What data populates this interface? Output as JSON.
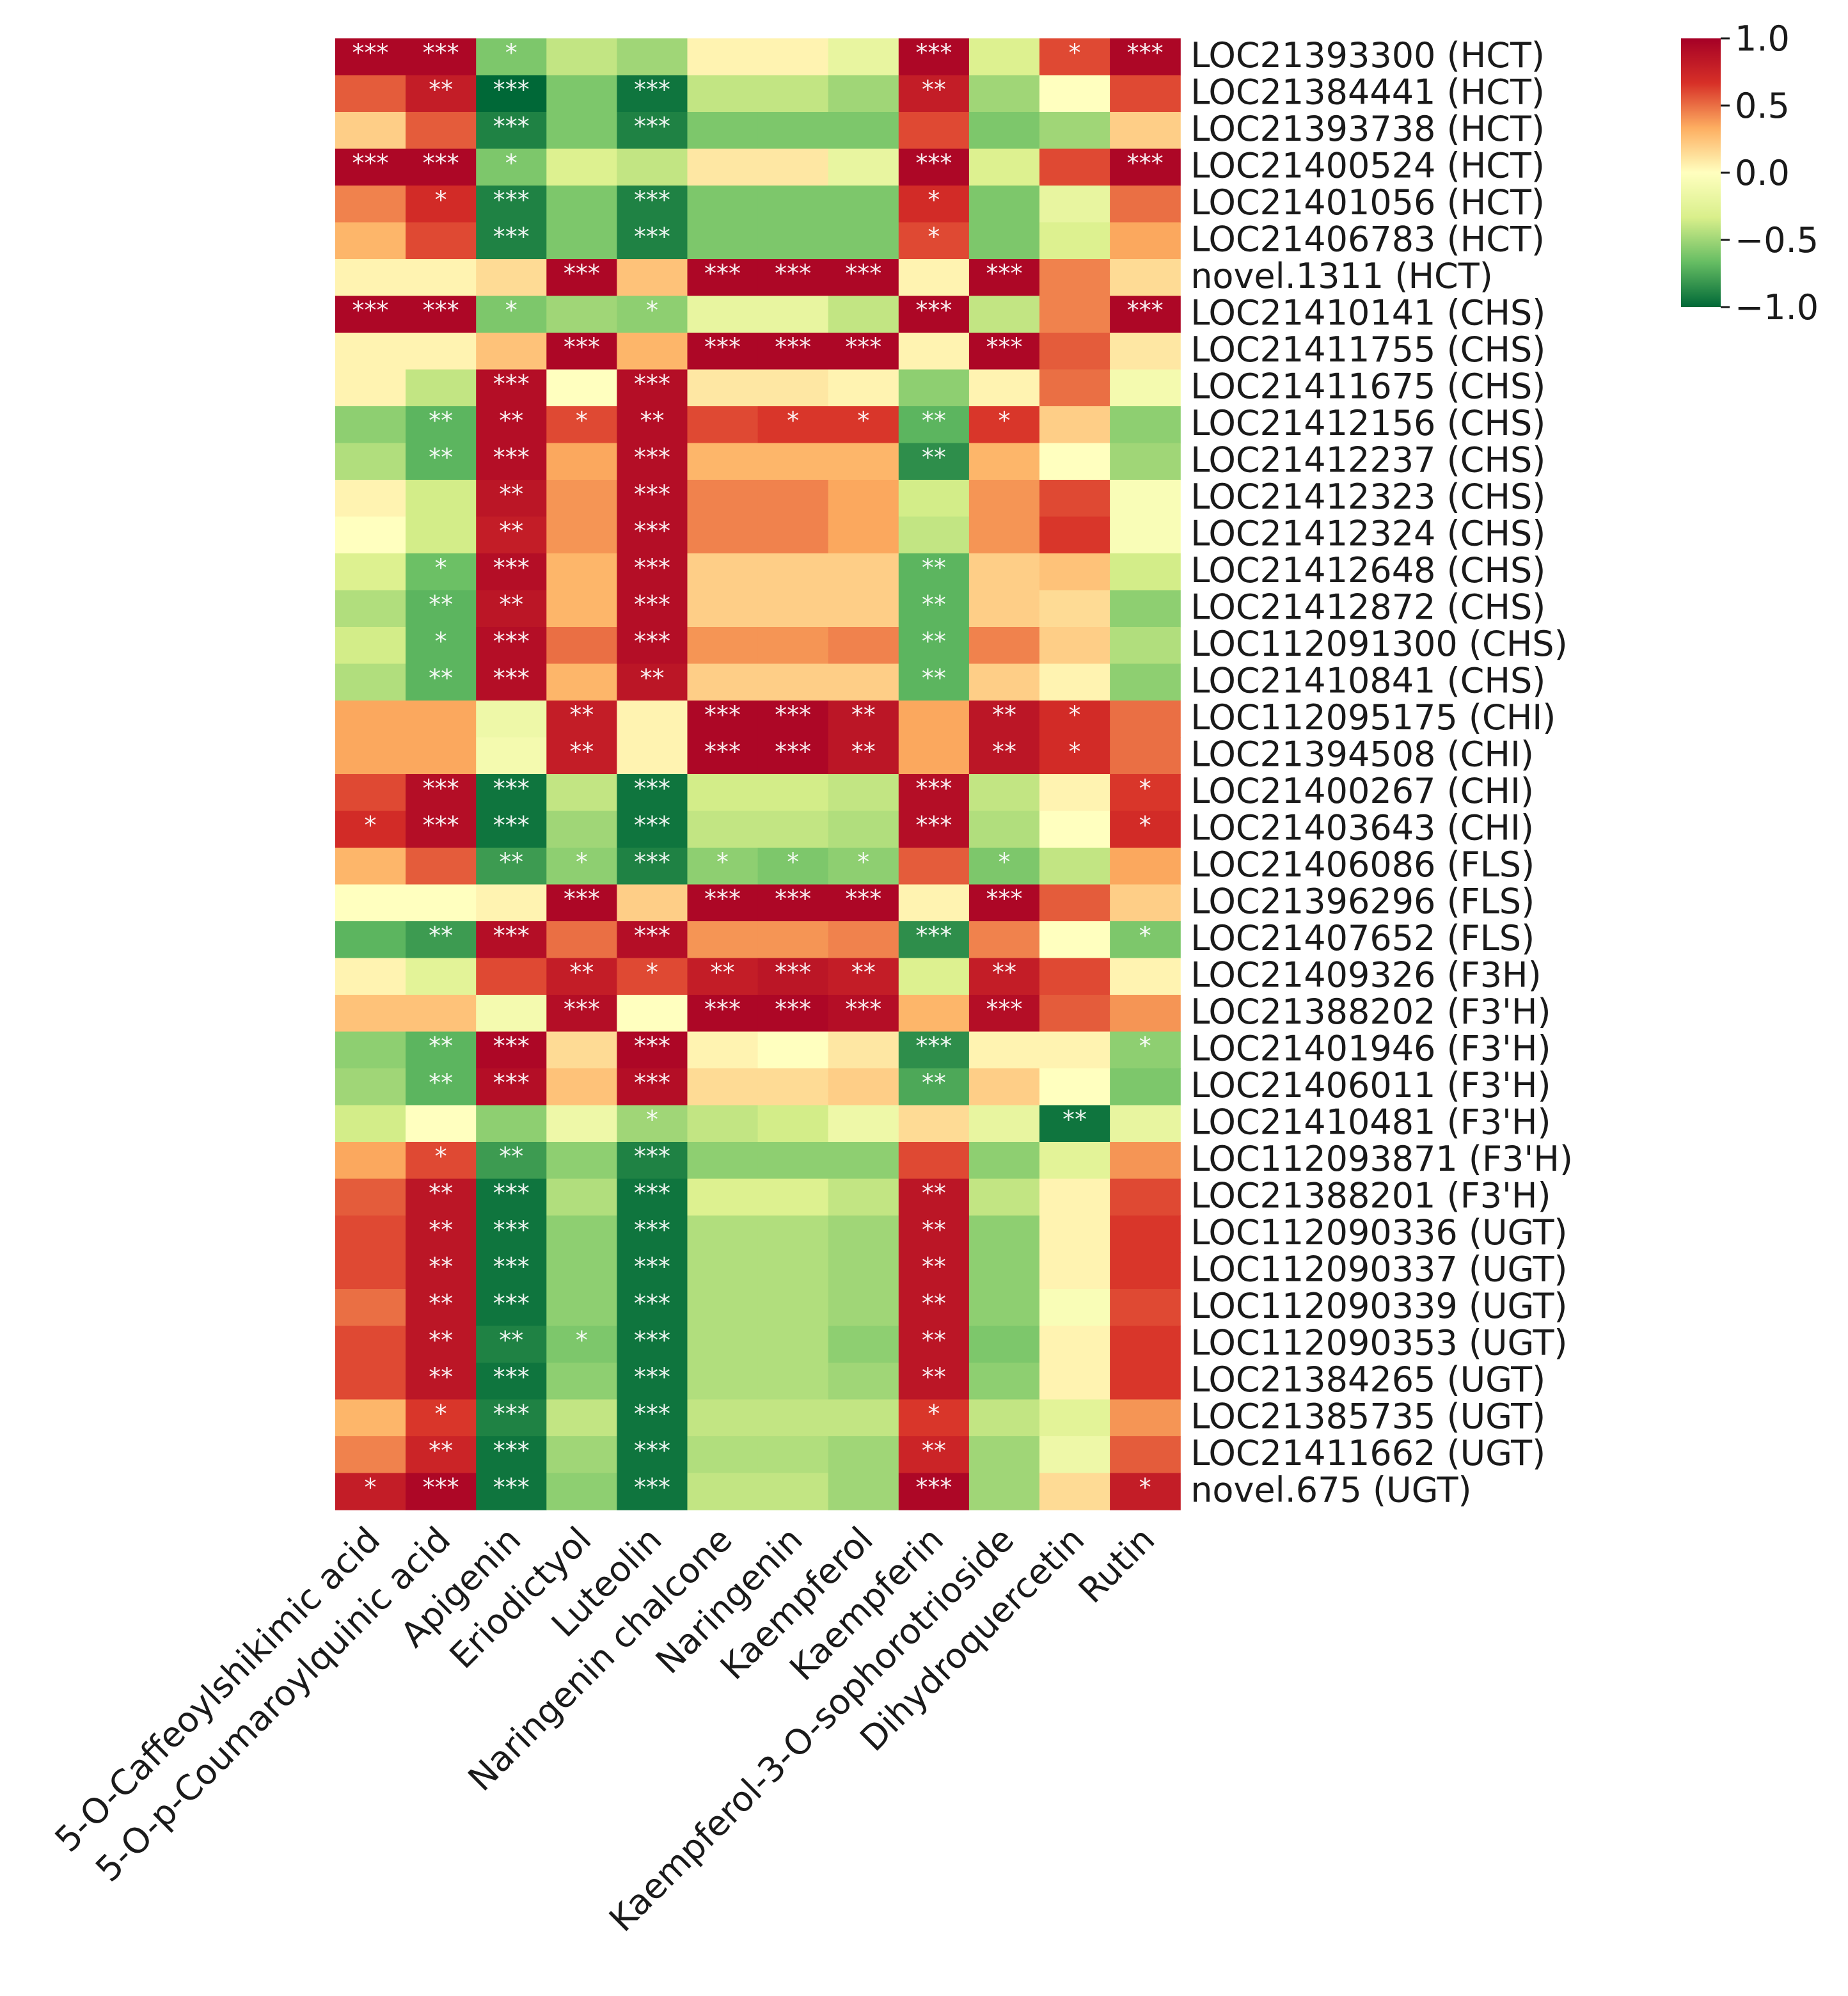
{
  "chart_data": {
    "type": "heatmap",
    "title": "",
    "columns": [
      "5-O-Caffeoylshikimic acid",
      "5-O-p-Coumaroylquinic acid",
      "Apigenin",
      "Eriodictyol",
      "Luteolin",
      "Naringenin chalcone",
      "Naringenin",
      "Kaempferol",
      "Kaempferin",
      "Kaempferol-3-O-sophorotrioside",
      "Dihydroquercetin",
      "Rutin"
    ],
    "rows": [
      "LOC21393300 (HCT)",
      "LOC21384441 (HCT)",
      "LOC21393738 (HCT)",
      "LOC21400524 (HCT)",
      "LOC21401056 (HCT)",
      "LOC21406783 (HCT)",
      "novel.1311 (HCT)",
      "LOC21410141 (CHS)",
      "LOC21411755 (CHS)",
      "LOC21411675 (CHS)",
      "LOC21412156 (CHS)",
      "LOC21412237 (CHS)",
      "LOC21412323 (CHS)",
      "LOC21412324 (CHS)",
      "LOC21412648 (CHS)",
      "LOC21412872 (CHS)",
      "LOC112091300 (CHS)",
      "LOC21410841 (CHS)",
      "LOC112095175 (CHI)",
      "LOC21394508 (CHI)",
      "LOC21400267 (CHI)",
      "LOC21403643 (CHI)",
      "LOC21406086 (FLS)",
      "LOC21396296 (FLS)",
      "LOC21407652 (FLS)",
      "LOC21409326 (F3H)",
      "LOC21388202 (F3'H)",
      "LOC21401946 (F3'H)",
      "LOC21406011 (F3'H)",
      "LOC21410481 (F3'H)",
      "LOC112093871 (F3'H)",
      "LOC21388201 (F3'H)",
      "LOC112090336 (UGT)",
      "LOC112090337 (UGT)",
      "LOC112090339 (UGT)",
      "LOC112090353 (UGT)",
      "LOC21384265 (UGT)",
      "LOC21385735 (UGT)",
      "LOC21411662 (UGT)",
      "novel.675 (UGT)"
    ],
    "values": [
      [
        0.95,
        0.95,
        -0.6,
        -0.4,
        -0.5,
        0.05,
        0.05,
        -0.2,
        0.95,
        -0.3,
        0.6,
        0.95
      ],
      [
        0.55,
        0.8,
        -1.0,
        -0.6,
        -0.95,
        -0.4,
        -0.4,
        -0.5,
        0.8,
        -0.5,
        0.0,
        0.6
      ],
      [
        0.2,
        0.55,
        -0.9,
        -0.6,
        -0.9,
        -0.6,
        -0.6,
        -0.6,
        0.6,
        -0.6,
        -0.5,
        0.2
      ],
      [
        0.95,
        0.95,
        -0.6,
        -0.3,
        -0.4,
        0.1,
        0.1,
        -0.2,
        0.95,
        -0.3,
        0.6,
        0.95
      ],
      [
        0.45,
        0.7,
        -0.9,
        -0.6,
        -0.9,
        -0.6,
        -0.6,
        -0.6,
        0.7,
        -0.6,
        -0.2,
        0.5
      ],
      [
        0.3,
        0.6,
        -0.9,
        -0.6,
        -0.9,
        -0.6,
        -0.6,
        -0.6,
        0.6,
        -0.6,
        -0.3,
        0.35
      ],
      [
        0.05,
        0.05,
        0.15,
        0.95,
        0.25,
        0.95,
        0.95,
        0.95,
        0.05,
        0.95,
        0.45,
        0.15
      ],
      [
        0.95,
        0.95,
        -0.6,
        -0.5,
        -0.55,
        -0.2,
        -0.2,
        -0.4,
        0.95,
        -0.4,
        0.45,
        0.95
      ],
      [
        0.05,
        0.05,
        0.25,
        0.95,
        0.3,
        0.95,
        0.95,
        0.95,
        0.05,
        0.95,
        0.55,
        0.1
      ],
      [
        0.05,
        -0.4,
        0.9,
        0.0,
        0.9,
        0.1,
        0.1,
        0.05,
        -0.55,
        0.05,
        0.5,
        -0.1
      ],
      [
        -0.55,
        -0.7,
        0.9,
        0.6,
        0.9,
        0.6,
        0.65,
        0.65,
        -0.7,
        0.65,
        0.2,
        -0.55
      ],
      [
        -0.45,
        -0.7,
        0.9,
        0.35,
        0.9,
        0.3,
        0.3,
        0.3,
        -0.85,
        0.3,
        0.0,
        -0.5
      ],
      [
        0.05,
        -0.35,
        0.85,
        0.4,
        0.9,
        0.45,
        0.45,
        0.35,
        -0.35,
        0.4,
        0.6,
        -0.05
      ],
      [
        0.0,
        -0.35,
        0.8,
        0.4,
        0.9,
        0.45,
        0.45,
        0.35,
        -0.4,
        0.4,
        0.65,
        -0.05
      ],
      [
        -0.3,
        -0.65,
        0.9,
        0.3,
        0.9,
        0.2,
        0.2,
        0.2,
        -0.7,
        0.2,
        0.25,
        -0.35
      ],
      [
        -0.45,
        -0.7,
        0.85,
        0.3,
        0.9,
        0.2,
        0.2,
        0.2,
        -0.7,
        0.2,
        0.15,
        -0.55
      ],
      [
        -0.35,
        -0.7,
        0.9,
        0.5,
        0.9,
        0.4,
        0.4,
        0.45,
        -0.7,
        0.45,
        0.2,
        -0.45
      ],
      [
        -0.45,
        -0.7,
        0.9,
        0.3,
        0.85,
        0.2,
        0.2,
        0.2,
        -0.7,
        0.2,
        0.05,
        -0.55
      ],
      [
        0.35,
        0.35,
        -0.15,
        0.8,
        0.05,
        0.95,
        0.95,
        0.85,
        0.35,
        0.85,
        0.7,
        0.5
      ],
      [
        0.35,
        0.35,
        -0.1,
        0.8,
        0.05,
        0.95,
        0.95,
        0.85,
        0.35,
        0.85,
        0.7,
        0.5
      ],
      [
        0.6,
        0.9,
        -0.95,
        -0.4,
        -0.95,
        -0.35,
        -0.35,
        -0.4,
        0.9,
        -0.4,
        0.05,
        0.65
      ],
      [
        0.7,
        0.9,
        -0.95,
        -0.5,
        -0.95,
        -0.4,
        -0.4,
        -0.45,
        0.9,
        -0.45,
        0.0,
        0.7
      ],
      [
        0.3,
        0.55,
        -0.8,
        -0.55,
        -0.9,
        -0.55,
        -0.6,
        -0.55,
        0.55,
        -0.6,
        -0.4,
        0.35
      ],
      [
        0.0,
        0.0,
        0.05,
        0.95,
        0.2,
        0.95,
        0.95,
        0.95,
        0.05,
        0.95,
        0.55,
        0.2
      ],
      [
        -0.7,
        -0.8,
        0.9,
        0.5,
        0.9,
        0.4,
        0.4,
        0.45,
        -0.85,
        0.45,
        0.0,
        -0.6
      ],
      [
        0.05,
        -0.25,
        0.6,
        0.8,
        0.6,
        0.8,
        0.85,
        0.8,
        -0.3,
        0.8,
        0.6,
        0.05
      ],
      [
        0.25,
        0.25,
        -0.1,
        0.9,
        0.0,
        0.95,
        0.95,
        0.9,
        0.3,
        0.9,
        0.55,
        0.4
      ],
      [
        -0.55,
        -0.7,
        0.95,
        0.15,
        0.95,
        0.05,
        0.0,
        0.1,
        -0.85,
        0.05,
        0.05,
        -0.55
      ],
      [
        -0.5,
        -0.7,
        0.9,
        0.25,
        0.9,
        0.15,
        0.15,
        0.2,
        -0.75,
        0.2,
        0.0,
        -0.6
      ],
      [
        -0.35,
        0.0,
        -0.55,
        -0.15,
        -0.5,
        -0.4,
        -0.35,
        -0.15,
        0.15,
        -0.2,
        -0.95,
        -0.2
      ],
      [
        0.35,
        0.6,
        -0.8,
        -0.55,
        -0.9,
        -0.55,
        -0.55,
        -0.55,
        0.6,
        -0.55,
        -0.25,
        0.4
      ],
      [
        0.55,
        0.85,
        -0.95,
        -0.45,
        -0.95,
        -0.3,
        -0.3,
        -0.4,
        0.85,
        -0.4,
        0.05,
        0.6
      ],
      [
        0.6,
        0.85,
        -0.95,
        -0.55,
        -0.95,
        -0.45,
        -0.45,
        -0.5,
        0.85,
        -0.55,
        0.05,
        0.65
      ],
      [
        0.6,
        0.85,
        -0.95,
        -0.55,
        -0.95,
        -0.45,
        -0.45,
        -0.5,
        0.85,
        -0.55,
        0.05,
        0.65
      ],
      [
        0.5,
        0.85,
        -0.95,
        -0.55,
        -0.95,
        -0.45,
        -0.45,
        -0.5,
        0.85,
        -0.55,
        -0.05,
        0.6
      ],
      [
        0.6,
        0.85,
        -0.9,
        -0.6,
        -0.95,
        -0.45,
        -0.45,
        -0.55,
        0.85,
        -0.6,
        0.05,
        0.65
      ],
      [
        0.6,
        0.85,
        -0.95,
        -0.55,
        -0.95,
        -0.45,
        -0.45,
        -0.5,
        0.85,
        -0.55,
        0.05,
        0.65
      ],
      [
        0.3,
        0.65,
        -0.9,
        -0.4,
        -0.95,
        -0.4,
        -0.4,
        -0.4,
        0.65,
        -0.4,
        -0.25,
        0.4
      ],
      [
        0.45,
        0.75,
        -0.95,
        -0.5,
        -0.95,
        -0.45,
        -0.45,
        -0.5,
        0.75,
        -0.5,
        -0.15,
        0.55
      ],
      [
        0.8,
        0.95,
        -0.95,
        -0.55,
        -0.95,
        -0.4,
        -0.4,
        -0.5,
        0.95,
        -0.5,
        0.15,
        0.8
      ]
    ],
    "significance": [
      [
        "***",
        "***",
        "*",
        "",
        "",
        "",
        "",
        "",
        "***",
        "",
        "*",
        "***"
      ],
      [
        "",
        "**",
        "***",
        "",
        "***",
        "",
        "",
        "",
        "**",
        "",
        "",
        ""
      ],
      [
        "",
        "",
        "***",
        "",
        "***",
        "",
        "",
        "",
        "",
        "",
        "",
        ""
      ],
      [
        "***",
        "***",
        "*",
        "",
        "",
        "",
        "",
        "",
        "***",
        "",
        "",
        "***"
      ],
      [
        "",
        "*",
        "***",
        "",
        "***",
        "",
        "",
        "",
        "*",
        "",
        "",
        ""
      ],
      [
        "",
        "",
        "***",
        "",
        "***",
        "",
        "",
        "",
        "*",
        "",
        "",
        ""
      ],
      [
        "",
        "",
        "",
        "***",
        "",
        "***",
        "***",
        "***",
        "",
        "***",
        "",
        ""
      ],
      [
        "***",
        "***",
        "*",
        "",
        "*",
        "",
        "",
        "",
        "***",
        "",
        "",
        "***"
      ],
      [
        "",
        "",
        "",
        "***",
        "",
        "***",
        "***",
        "***",
        "",
        "***",
        "",
        ""
      ],
      [
        "",
        "",
        "***",
        "",
        "***",
        "",
        "",
        "",
        "",
        "",
        "",
        ""
      ],
      [
        "",
        "**",
        "**",
        "*",
        "**",
        "",
        "*",
        "*",
        "**",
        "*",
        "",
        ""
      ],
      [
        "",
        "**",
        "***",
        "",
        "***",
        "",
        "",
        "",
        "**",
        "",
        "",
        ""
      ],
      [
        "",
        "",
        "**",
        "",
        "***",
        "",
        "",
        "",
        "",
        "",
        "",
        ""
      ],
      [
        "",
        "",
        "**",
        "",
        "***",
        "",
        "",
        "",
        "",
        "",
        "",
        ""
      ],
      [
        "",
        "*",
        "***",
        "",
        "***",
        "",
        "",
        "",
        "**",
        "",
        "",
        ""
      ],
      [
        "",
        "**",
        "**",
        "",
        "***",
        "",
        "",
        "",
        "**",
        "",
        "",
        ""
      ],
      [
        "",
        "*",
        "***",
        "",
        "***",
        "",
        "",
        "",
        "**",
        "",
        "",
        ""
      ],
      [
        "",
        "**",
        "***",
        "",
        "**",
        "",
        "",
        "",
        "**",
        "",
        "",
        ""
      ],
      [
        "",
        "",
        "",
        "**",
        "",
        "***",
        "***",
        "**",
        "",
        "**",
        "*",
        ""
      ],
      [
        "",
        "",
        "",
        "**",
        "",
        "***",
        "***",
        "**",
        "",
        "**",
        "*",
        ""
      ],
      [
        "",
        "***",
        "***",
        "",
        "***",
        "",
        "",
        "",
        "***",
        "",
        "",
        "*"
      ],
      [
        "*",
        "***",
        "***",
        "",
        "***",
        "",
        "",
        "",
        "***",
        "",
        "",
        "*"
      ],
      [
        "",
        "",
        "**",
        "*",
        "***",
        "*",
        "*",
        "*",
        "",
        "*",
        "",
        ""
      ],
      [
        "",
        "",
        "",
        "***",
        "",
        "***",
        "***",
        "***",
        "",
        "***",
        "",
        ""
      ],
      [
        "",
        "**",
        "***",
        "",
        "***",
        "",
        "",
        "",
        "***",
        "",
        "",
        "*"
      ],
      [
        "",
        "",
        "",
        "**",
        "*",
        "**",
        "***",
        "**",
        "",
        "**",
        "",
        ""
      ],
      [
        "",
        "",
        "",
        "***",
        "",
        "***",
        "***",
        "***",
        "",
        "***",
        "",
        ""
      ],
      [
        "",
        "**",
        "***",
        "",
        "***",
        "",
        "",
        "",
        "***",
        "",
        "",
        "*"
      ],
      [
        "",
        "**",
        "***",
        "",
        "***",
        "",
        "",
        "",
        "**",
        "",
        "",
        ""
      ],
      [
        "",
        "",
        "",
        "",
        "*",
        "",
        "",
        "",
        "",
        "",
        "**",
        ""
      ],
      [
        "",
        "*",
        "**",
        "",
        "***",
        "",
        "",
        "",
        "",
        "",
        "",
        ""
      ],
      [
        "",
        "**",
        "***",
        "",
        "***",
        "",
        "",
        "",
        "**",
        "",
        "",
        ""
      ],
      [
        "",
        "**",
        "***",
        "",
        "***",
        "",
        "",
        "",
        "**",
        "",
        "",
        ""
      ],
      [
        "",
        "**",
        "***",
        "",
        "***",
        "",
        "",
        "",
        "**",
        "",
        "",
        ""
      ],
      [
        "",
        "**",
        "***",
        "",
        "***",
        "",
        "",
        "",
        "**",
        "",
        "",
        ""
      ],
      [
        "",
        "**",
        "**",
        "*",
        "***",
        "",
        "",
        "",
        "**",
        "",
        "",
        ""
      ],
      [
        "",
        "**",
        "***",
        "",
        "***",
        "",
        "",
        "",
        "**",
        "",
        "",
        ""
      ],
      [
        "",
        "*",
        "***",
        "",
        "***",
        "",
        "",
        "",
        "*",
        "",
        "",
        ""
      ],
      [
        "",
        "**",
        "***",
        "",
        "***",
        "",
        "",
        "",
        "**",
        "",
        "",
        ""
      ],
      [
        "*",
        "***",
        "***",
        "",
        "***",
        "",
        "",
        "",
        "***",
        "",
        "",
        "*"
      ]
    ],
    "colorbar": {
      "vmin": -1.0,
      "vmax": 1.0,
      "ticks": [
        1.0,
        0.5,
        0.0,
        -0.5,
        -1.0
      ],
      "tick_labels": [
        "1.0",
        "0.5",
        "0.0",
        "−0.5",
        "−1.0"
      ],
      "colormap": "RdYlGn_r",
      "colors": [
        "#006837",
        "#66bd63",
        "#d9ef8b",
        "#ffffbf",
        "#fdae61",
        "#d73027",
        "#a50026"
      ]
    }
  }
}
